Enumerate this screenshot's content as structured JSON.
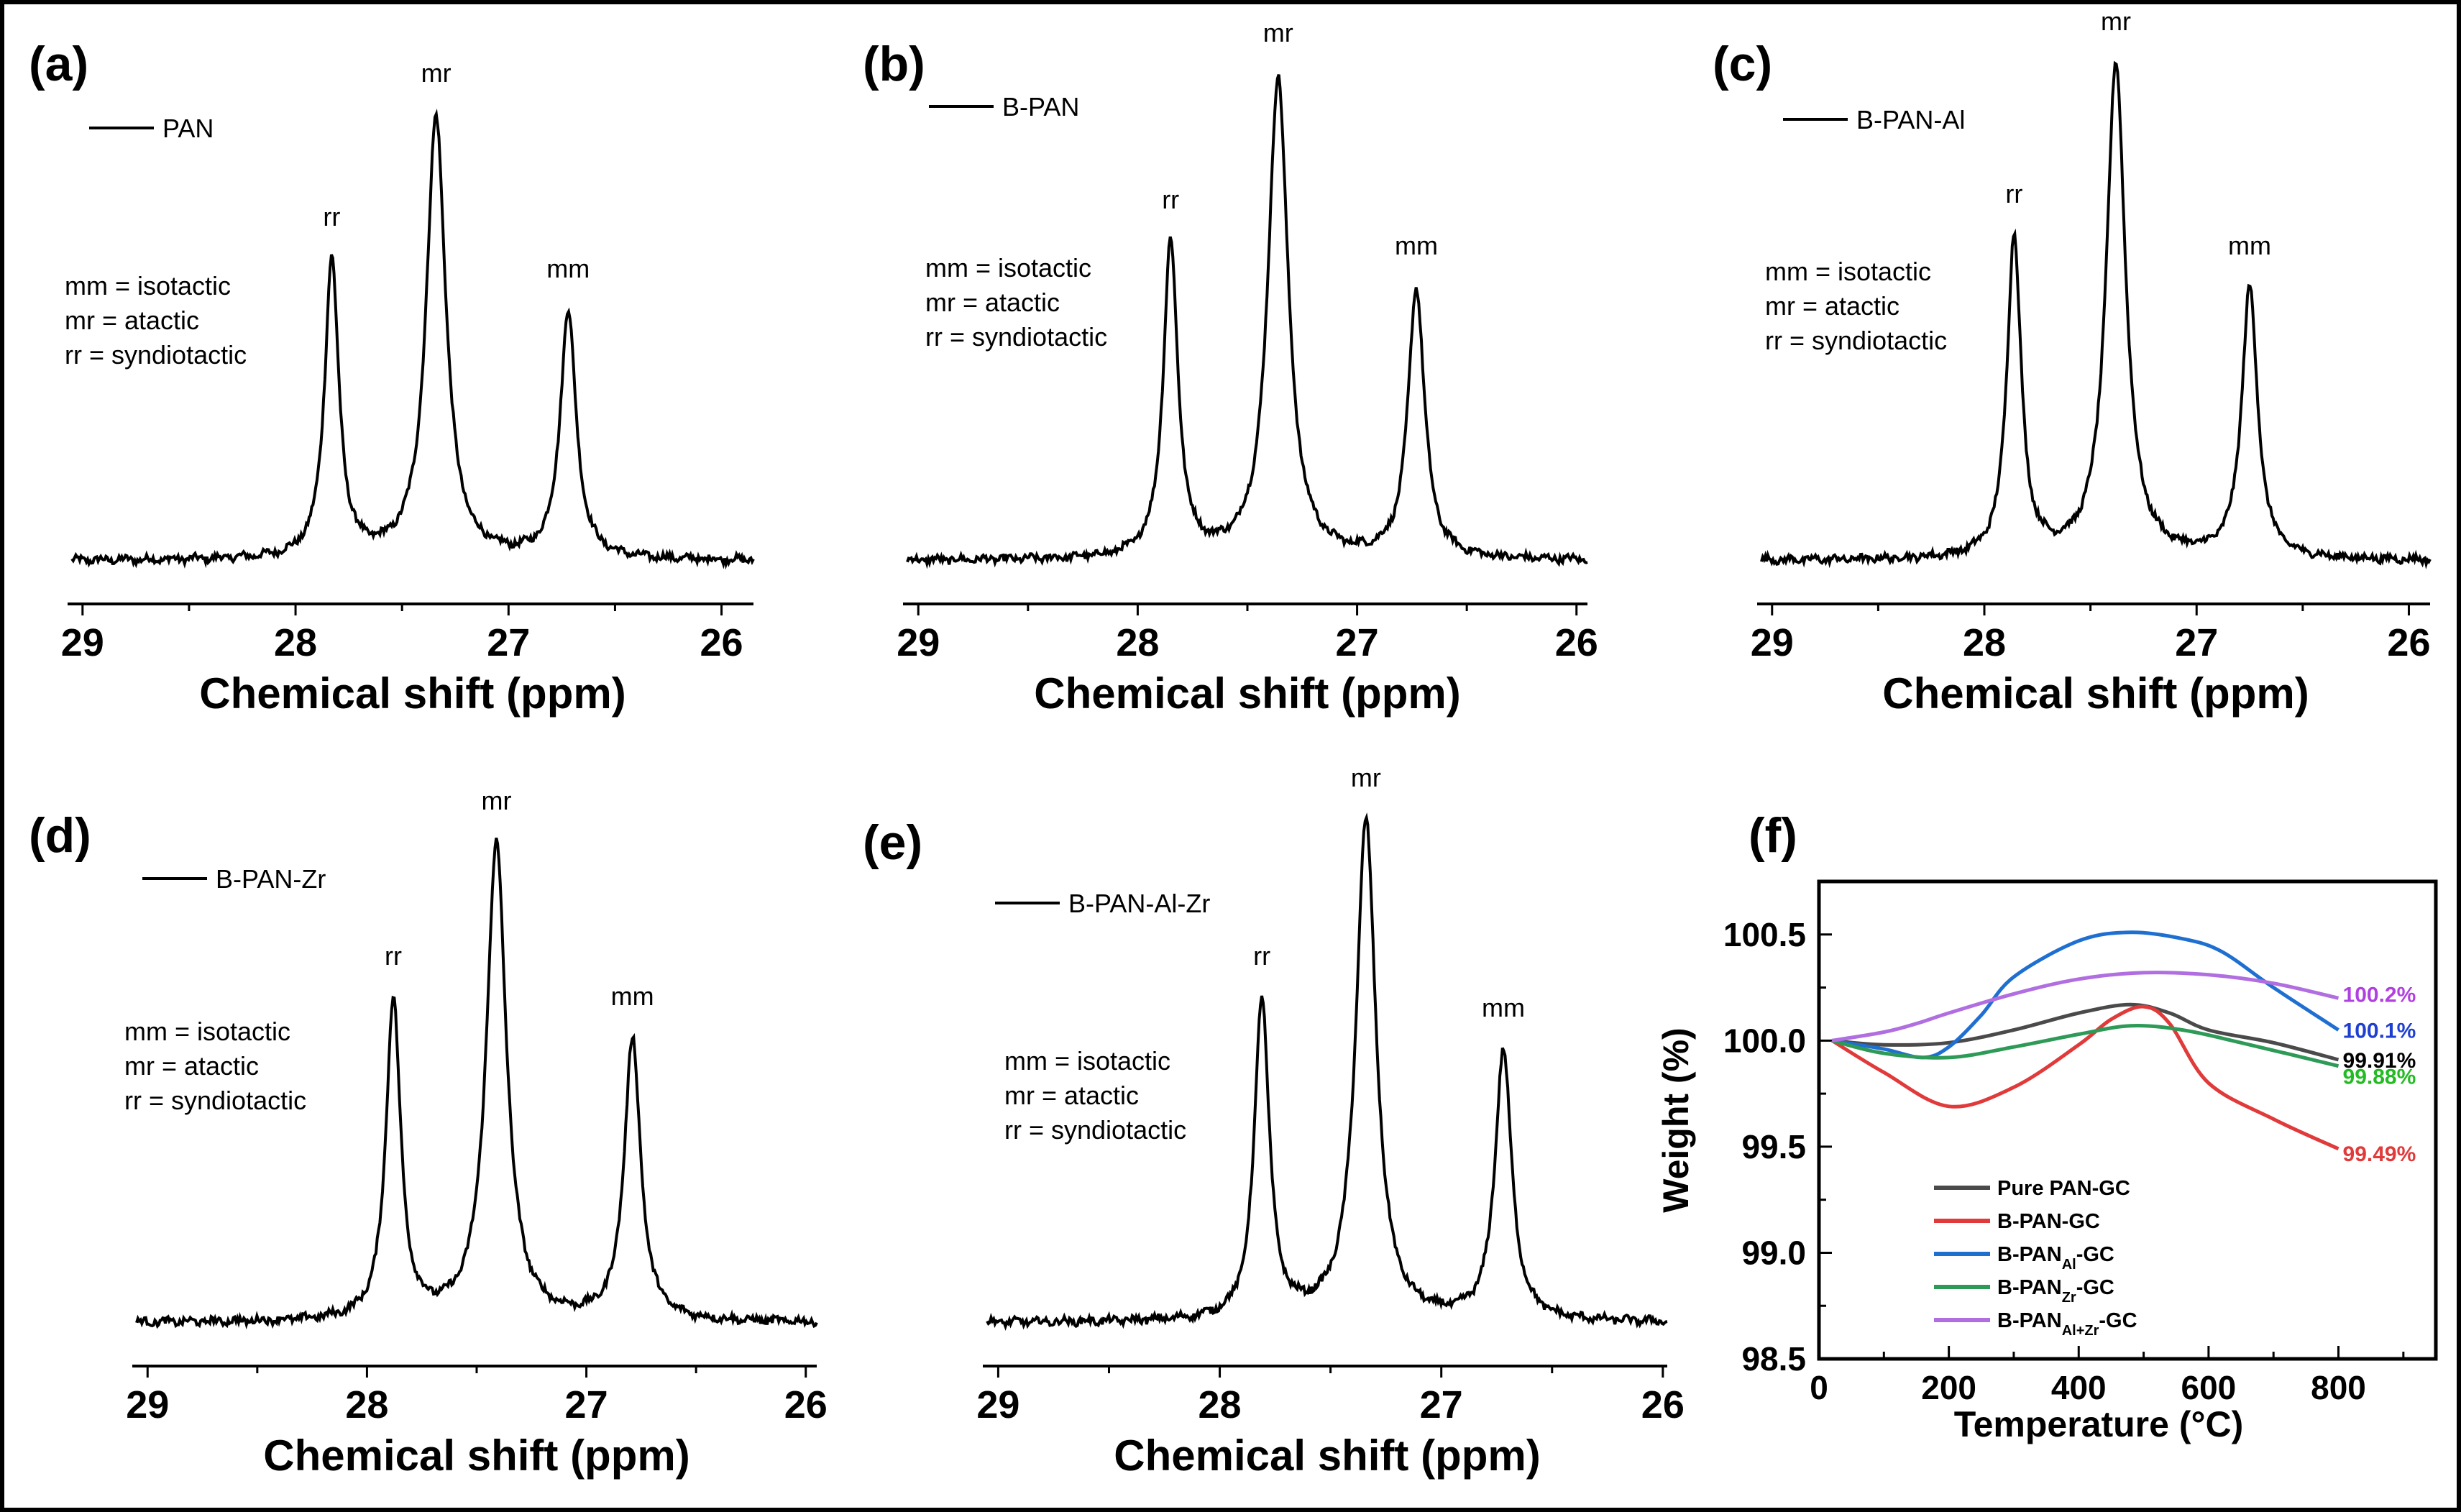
{
  "figure": {
    "border_color": "#000000"
  },
  "chart_data": [
    {
      "type": "line",
      "panel_label": "(a)",
      "legend": "PAN",
      "xlabel": "Chemical shift (ppm)",
      "ylabel": "",
      "xlim": [
        29.05,
        25.85
      ],
      "x_reversed": true,
      "xticks": [
        "29",
        "28",
        "27",
        "26"
      ],
      "notes": [
        "mm = isotactic",
        "mr = atactic",
        "rr = syndiotactic"
      ],
      "peaks": [
        {
          "label": "rr",
          "ppm": 27.83,
          "height": 0.52,
          "width": 0.04
        },
        {
          "label": "mr",
          "ppm": 27.34,
          "height": 0.77,
          "width": 0.055
        },
        {
          "label": "mm",
          "ppm": 26.72,
          "height": 0.43,
          "width": 0.045
        }
      ],
      "series_color": "#000000"
    },
    {
      "type": "line",
      "panel_label": "(b)",
      "legend": "B-PAN",
      "xlabel": "Chemical shift (ppm)",
      "ylabel": "",
      "xlim": [
        29.05,
        25.95
      ],
      "x_reversed": true,
      "xticks": [
        "29",
        "28",
        "27",
        "26"
      ],
      "notes": [
        "mm = isotactic",
        "mr = atactic",
        "rr = syndiotactic"
      ],
      "peaks": [
        {
          "label": "rr",
          "ppm": 27.85,
          "height": 0.55,
          "width": 0.04
        },
        {
          "label": "mr",
          "ppm": 27.36,
          "height": 0.84,
          "width": 0.055
        },
        {
          "label": "mm",
          "ppm": 26.73,
          "height": 0.47,
          "width": 0.045
        }
      ],
      "series_color": "#000000"
    },
    {
      "type": "line",
      "panel_label": "(c)",
      "legend": "B-PAN-Al",
      "xlabel": "Chemical shift (ppm)",
      "ylabel": "",
      "xlim": [
        29.05,
        25.9
      ],
      "x_reversed": true,
      "xticks": [
        "29",
        "28",
        "27",
        "26"
      ],
      "notes": [
        "mm = isotactic",
        "mr = atactic",
        "rr = syndiotactic"
      ],
      "peaks": [
        {
          "label": "rr",
          "ppm": 27.86,
          "height": 0.56,
          "width": 0.04
        },
        {
          "label": "mr",
          "ppm": 27.38,
          "height": 0.86,
          "width": 0.055
        },
        {
          "label": "mm",
          "ppm": 26.75,
          "height": 0.47,
          "width": 0.045
        }
      ],
      "series_color": "#000000"
    },
    {
      "type": "line",
      "panel_label": "(d)",
      "legend": "B-PAN-Zr",
      "xlabel": "Chemical shift (ppm)",
      "ylabel": "",
      "xlim": [
        29.05,
        25.95
      ],
      "x_reversed": true,
      "xticks": [
        "29",
        "28",
        "27",
        "26"
      ],
      "notes": [
        "mm = isotactic",
        "mr = atactic",
        "rr = syndiotactic"
      ],
      "peaks": [
        {
          "label": "rr",
          "ppm": 27.88,
          "height": 0.56,
          "width": 0.04
        },
        {
          "label": "mr",
          "ppm": 27.41,
          "height": 0.83,
          "width": 0.055
        },
        {
          "label": "mm",
          "ppm": 26.79,
          "height": 0.49,
          "width": 0.045
        }
      ],
      "series_color": "#000000"
    },
    {
      "type": "line",
      "panel_label": "(e)",
      "legend": "B-PAN-Al-Zr",
      "xlabel": "Chemical shift (ppm)",
      "ylabel": "",
      "xlim": [
        29.05,
        25.98
      ],
      "x_reversed": true,
      "xticks": [
        "29",
        "28",
        "27",
        "26"
      ],
      "notes": [
        "mm = isotactic",
        "mr = atactic",
        "rr = syndiotactic"
      ],
      "peaks": [
        {
          "label": "rr",
          "ppm": 27.81,
          "height": 0.56,
          "width": 0.04
        },
        {
          "label": "mr",
          "ppm": 27.34,
          "height": 0.87,
          "width": 0.055
        },
        {
          "label": "mm",
          "ppm": 26.72,
          "height": 0.47,
          "width": 0.045
        }
      ],
      "series_color": "#000000"
    },
    {
      "type": "line",
      "panel_label": "(f)",
      "xlabel": "Temperature (°C)",
      "ylabel": "Weight (%)",
      "xlim": [
        0,
        950
      ],
      "ylim": [
        98.5,
        100.75
      ],
      "xticks": [
        "0",
        "200",
        "400",
        "600",
        "800"
      ],
      "yticks": [
        "98.5",
        "99.0",
        "99.5",
        "100.0",
        "100.5"
      ],
      "series": [
        {
          "name": "Pure PAN-GC",
          "legend_base": "Pure PAN-GC",
          "legend_sub": "",
          "legend_suffix": "",
          "color": "#4a4a4a",
          "end_label": "99.91%",
          "end_label_color": "#000000",
          "points": [
            [
              20,
              100.0
            ],
            [
              100,
              99.98
            ],
            [
              200,
              99.99
            ],
            [
              300,
              100.05
            ],
            [
              400,
              100.13
            ],
            [
              480,
              100.17
            ],
            [
              540,
              100.13
            ],
            [
              600,
              100.05
            ],
            [
              700,
              99.99
            ],
            [
              800,
              99.91
            ]
          ]
        },
        {
          "name": "B-PAN-GC",
          "legend_base": "B-PAN-GC",
          "legend_sub": "",
          "legend_suffix": "",
          "color": "#e03a3a",
          "end_label": "99.49%",
          "end_label_color": "#e03a3a",
          "points": [
            [
              20,
              100.0
            ],
            [
              100,
              99.85
            ],
            [
              200,
              99.69
            ],
            [
              300,
              99.78
            ],
            [
              400,
              99.98
            ],
            [
              450,
              100.1
            ],
            [
              500,
              100.16
            ],
            [
              540,
              100.08
            ],
            [
              600,
              99.8
            ],
            [
              700,
              99.63
            ],
            [
              800,
              99.49
            ]
          ]
        },
        {
          "name": "B-PANAl-GC",
          "legend_base": "B-PAN",
          "legend_sub": "Al",
          "legend_suffix": "-GC",
          "color": "#1f6fd1",
          "end_label": "100.1%",
          "end_label_color": "#1f3fd1",
          "points": [
            [
              20,
              100.0
            ],
            [
              100,
              99.96
            ],
            [
              160,
              99.92
            ],
            [
              200,
              99.97
            ],
            [
              250,
              100.12
            ],
            [
              300,
              100.3
            ],
            [
              400,
              100.47
            ],
            [
              480,
              100.51
            ],
            [
              560,
              100.48
            ],
            [
              620,
              100.42
            ],
            [
              700,
              100.25
            ],
            [
              800,
              100.05
            ]
          ]
        },
        {
          "name": "B-PANZr-GC",
          "legend_base": "B-PAN",
          "legend_sub": "Zr",
          "legend_suffix": "-GC",
          "color": "#2e9a57",
          "end_label": "99.88%",
          "end_label_color": "#22bb22",
          "points": [
            [
              20,
              100.0
            ],
            [
              100,
              99.94
            ],
            [
              200,
              99.92
            ],
            [
              300,
              99.97
            ],
            [
              400,
              100.03
            ],
            [
              480,
              100.07
            ],
            [
              560,
              100.05
            ],
            [
              650,
              99.99
            ],
            [
              800,
              99.88
            ]
          ]
        },
        {
          "name": "B-PANAl+Zr-GC",
          "legend_base": "B-PAN",
          "legend_sub": "Al+Zr",
          "legend_suffix": "-GC",
          "color": "#b06ee0",
          "end_label": "100.2%",
          "end_label_color": "#b040e0",
          "points": [
            [
              20,
              100.0
            ],
            [
              100,
              100.04
            ],
            [
              150,
              100.08
            ],
            [
              200,
              100.13
            ],
            [
              300,
              100.22
            ],
            [
              400,
              100.29
            ],
            [
              500,
              100.32
            ],
            [
              600,
              100.31
            ],
            [
              700,
              100.27
            ],
            [
              800,
              100.2
            ]
          ]
        }
      ]
    }
  ]
}
